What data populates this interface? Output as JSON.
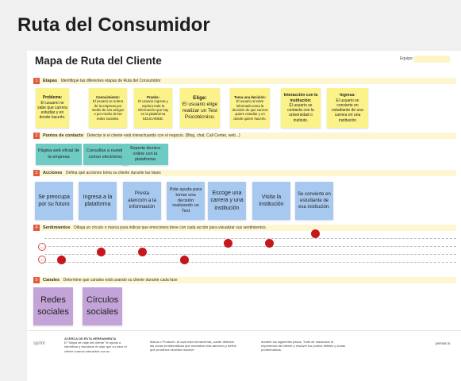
{
  "page_title": "Ruta del Consumidor",
  "board": {
    "title": "Mapa de Ruta del Cliente",
    "team_label": "Equipo:"
  },
  "sections": [
    {
      "num": "1",
      "title": "Etapas",
      "desc": "Identifique las diferentes etapas de Ruta del Consumidor"
    },
    {
      "num": "2",
      "title": "Puntos de contacto",
      "desc": "Detectar si el cliente está interactuando con el negocio. (Blog, chat, Call Center, web...)"
    },
    {
      "num": "3",
      "title": "Acciones",
      "desc": "Defina qué acciones toma su cliente durante las fases"
    },
    {
      "num": "4",
      "title": "Sentimientos",
      "desc": "Dibuja un círculo o marca para indicar que  emociones tiene con cada acción para visualizar sus sentimientos."
    },
    {
      "num": "5",
      "title": "Canales",
      "desc": "Determine que canales está usando su cliente durante cada fase"
    }
  ],
  "stages": [
    {
      "title": "Problema:",
      "text": "El usuario no sabe que carrera estudiar y en donde hacerlo."
    },
    {
      "title": "Conocimiento:",
      "text": "El usuario se entera de la empresa por medio de sus amigos o por medio de las redes sociales."
    },
    {
      "title": "Prueba:",
      "text": "El usuario ingresa y explora toda la información que hay en la plataforma EDUCAWEB."
    },
    {
      "title": "Elige:",
      "text": "El usuario elige realizar un Test Psicotécnico."
    },
    {
      "title": "Toma una decisión:",
      "text": "El usuario al estar informado toma la decisión de que carrera quiere estudiar y en donde quiere hacerlo."
    },
    {
      "title": "Interacción con la institución:",
      "text": "El usuario se contacta con la universidad o instituto."
    },
    {
      "title": "Ingresa:",
      "text": "El usuario se convierte en estudiante de una carrera en una institución"
    }
  ],
  "touchpoints": [
    "Página web oficial de la empresa",
    "Consultas a nuestro correo electrónico",
    "Soporte técnico online con la plataforma"
  ],
  "actions": [
    "Se preocupa por su futuro",
    "Ingresa a la plataforma",
    "Presta atención a la información",
    "Pide ayuda para tomar una decisión realizando un Test",
    "Escoge una carrera y una institución",
    "Visita la institución",
    "Se convierte en estudiante de esa institución."
  ],
  "feelings": {
    "happy_icon": "smiley-face-icon",
    "sad_icon": "sad-face-icon",
    "markers": [
      {
        "step": 1,
        "mood": "negative"
      },
      {
        "step": 2,
        "mood": "neutral"
      },
      {
        "step": 3,
        "mood": "neutral"
      },
      {
        "step": 4,
        "mood": "negative"
      },
      {
        "step": 5,
        "mood": "positive"
      },
      {
        "step": 6,
        "mood": "positive"
      },
      {
        "step": 7,
        "mood": "very-positive"
      }
    ],
    "marker_color": "#c7161c"
  },
  "channels": [
    "Redes sociales",
    "Círculos sociales"
  ],
  "footer": {
    "logo": "sprint",
    "about_title": "ACERCA DE ESTA HERRAMIENTA",
    "about_text": "El \"Mapa de viaje del cliente\" le ayuda a identificar y visualizar el viaje que su hace el cliente cuando interactúa con su",
    "col2": "Marca o Producto. Al usar esta herramienta, puede detectar las zonas problemáticas que necesitan más atención y definir qué problema necesita resolver",
    "col3": "durante los siguientes pasos. Trate de maximizar la experiencia del cliente y resolver los puntos débiles y zonas problemáticas.",
    "right_label": "pensar.io"
  },
  "colors": {
    "yellow_note": "#fcf28a",
    "teal_note": "#6ecbc4",
    "blue_note": "#a8c9ef",
    "purple_note": "#c3a3d8",
    "section_band": "#fdf6d0",
    "section_number": "#e05a3c"
  }
}
